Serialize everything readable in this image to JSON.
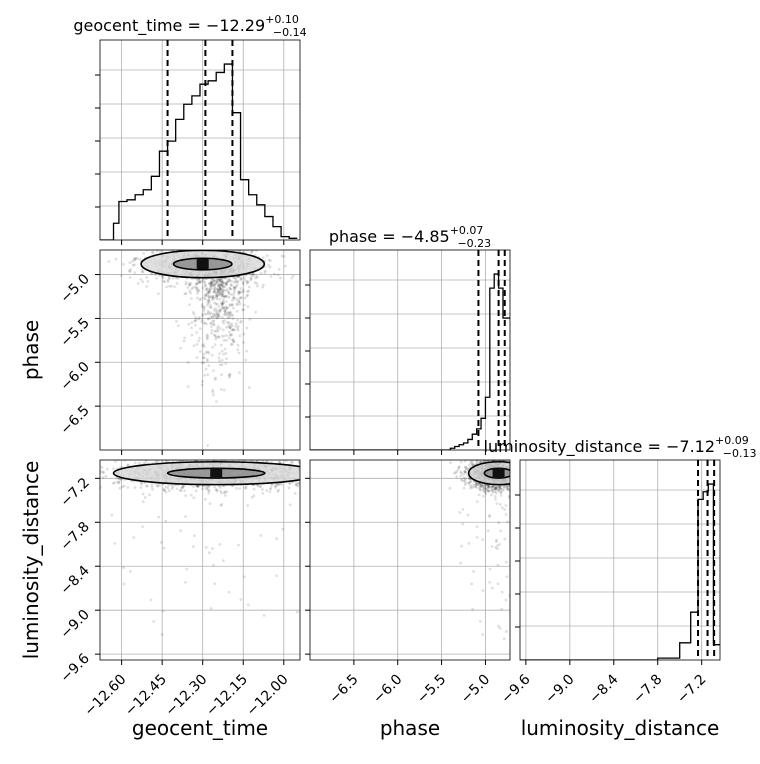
{
  "chart_data": {
    "type": "corner",
    "parameters": [
      "geocent_time",
      "phase",
      "luminosity_distance"
    ],
    "titles": [
      {
        "name": "geocent_time",
        "median": "−12.29",
        "plus": "+0.10",
        "minus": "−0.14"
      },
      {
        "name": "phase",
        "median": "−4.85",
        "plus": "+0.07",
        "minus": "−0.23"
      },
      {
        "name": "luminosity_distance",
        "median": "−7.12",
        "plus": "+0.09",
        "minus": "−0.13"
      }
    ],
    "axis_labels": {
      "x": [
        "geocent_time",
        "phase",
        "luminosity_distance"
      ],
      "y": [
        "phase",
        "luminosity_distance"
      ]
    },
    "ranges": {
      "geocent_time": [
        -12.68,
        -11.94
      ],
      "phase": [
        -7.0,
        -4.72
      ],
      "luminosity_distance": [
        -9.68,
        -6.95
      ]
    },
    "ticks": {
      "geocent_time": [
        -12.6,
        -12.45,
        -12.3,
        -12.15,
        -12.0
      ],
      "phase": [
        -6.5,
        -6.0,
        -5.5,
        -5.0
      ],
      "luminosity_distance": [
        -9.6,
        -9.0,
        -8.4,
        -7.8,
        -7.2
      ]
    },
    "tick_labels": {
      "geocent_time": [
        "−12.60",
        "−12.45",
        "−12.30",
        "−12.15",
        "−12.00"
      ],
      "phase_x": [
        "−6.5",
        "−6.0",
        "−5.5",
        "−5.0"
      ],
      "phase_y": [
        "−5.0",
        "−5.5",
        "−6.0",
        "−6.5"
      ],
      "luminosity_distance_x": [
        "−9.6",
        "−9.0",
        "−8.4",
        "−7.8",
        "−7.2"
      ],
      "luminosity_distance_y": [
        "−7.2",
        "−7.8",
        "−8.4",
        "−9.0",
        "−9.6"
      ]
    },
    "quantiles": {
      "geocent_time": [
        -12.43,
        -12.29,
        -12.19
      ],
      "phase": [
        -5.08,
        -4.85,
        -4.78
      ],
      "luminosity_distance": [
        -7.25,
        -7.12,
        -7.03
      ]
    },
    "histograms": {
      "geocent_time": {
        "edges": [
          -12.68,
          -12.63,
          -12.61,
          -12.58,
          -12.55,
          -12.52,
          -12.49,
          -12.46,
          -12.43,
          -12.4,
          -12.37,
          -12.34,
          -12.31,
          -12.28,
          -12.25,
          -12.22,
          -12.19,
          -12.16,
          -12.13,
          -12.1,
          -12.07,
          -12.04,
          -12.01,
          -11.98,
          -11.95
        ],
        "counts": [
          0,
          0.1,
          0.23,
          0.24,
          0.27,
          0.3,
          0.38,
          0.53,
          0.59,
          0.72,
          0.81,
          0.86,
          0.93,
          0.95,
          1.0,
          1.05,
          0.76,
          0.36,
          0.27,
          0.21,
          0.14,
          0.08,
          0.02,
          0.01
        ]
      },
      "phase": {
        "edges": [
          -7.0,
          -5.4,
          -5.35,
          -5.3,
          -5.25,
          -5.2,
          -5.15,
          -5.1,
          -5.05,
          -5.0,
          -4.95,
          -4.9,
          -4.85,
          -4.8,
          -4.75,
          -4.72
        ],
        "counts": [
          0,
          0.01,
          0.02,
          0.03,
          0.04,
          0.06,
          0.09,
          0.12,
          0.18,
          0.3,
          0.92,
          1.0,
          0.92,
          0.75,
          0.75
        ]
      },
      "luminosity_distance": {
        "edges": [
          -9.68,
          -7.8,
          -7.5,
          -7.35,
          -7.25,
          -7.18,
          -7.11,
          -7.04,
          -6.97,
          -6.95
        ],
        "counts": [
          0,
          0.01,
          0.09,
          0.25,
          0.84,
          0.88,
          0.92,
          0.08,
          0.08
        ]
      }
    },
    "density_regions": [
      {
        "x": "geocent_time",
        "y": "phase",
        "center": [
          -12.3,
          -4.88
        ],
        "spread": [
          0.12,
          0.12
        ],
        "tail": [
          -12.24,
          -5.9
        ]
      },
      {
        "x": "geocent_time",
        "y": "luminosity_distance",
        "center": [
          -12.25,
          -7.13
        ],
        "spread": [
          0.2,
          0.12
        ]
      },
      {
        "x": "phase",
        "y": "luminosity_distance",
        "center": [
          -4.85,
          -7.13
        ],
        "spread": [
          0.18,
          0.12
        ]
      }
    ],
    "grid": true
  }
}
